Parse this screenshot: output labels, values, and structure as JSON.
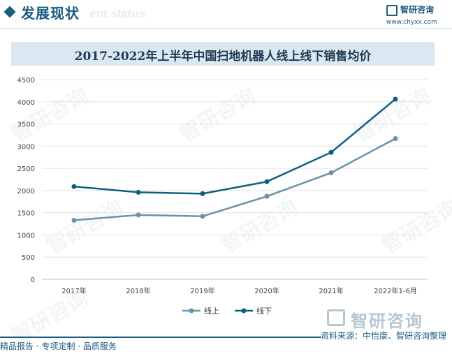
{
  "header": {
    "section_title": "发展现状",
    "ghost_title": "ent status",
    "logo_name": "智研咨询",
    "logo_url": "www.chyxx.com"
  },
  "watermark": "智研咨询",
  "chart_data": {
    "type": "line",
    "title": "2017-2022年上半年中国扫地机器人线上线下销售均价",
    "categories": [
      "2017年",
      "2018年",
      "2019年",
      "2020年",
      "2021年",
      "2022年1-6月"
    ],
    "ylim": [
      0,
      4500
    ],
    "yticks": [
      0,
      500,
      1000,
      1500,
      2000,
      2500,
      3000,
      3500,
      4000,
      4500
    ],
    "grid": true,
    "legend_position": "bottom-center",
    "series": [
      {
        "name": "线上",
        "color": "#6a93a8",
        "values": [
          1330,
          1450,
          1420,
          1870,
          2400,
          3170
        ]
      },
      {
        "name": "线下",
        "color": "#0f5f82",
        "values": [
          2090,
          1960,
          1930,
          2200,
          2860,
          4060
        ]
      }
    ]
  },
  "footer": {
    "logo_name": "智研咨询",
    "source": "资料来源：中怡康、智研咨询整理",
    "left_text": "精品报告 · 专项定制 · 品质服务"
  }
}
